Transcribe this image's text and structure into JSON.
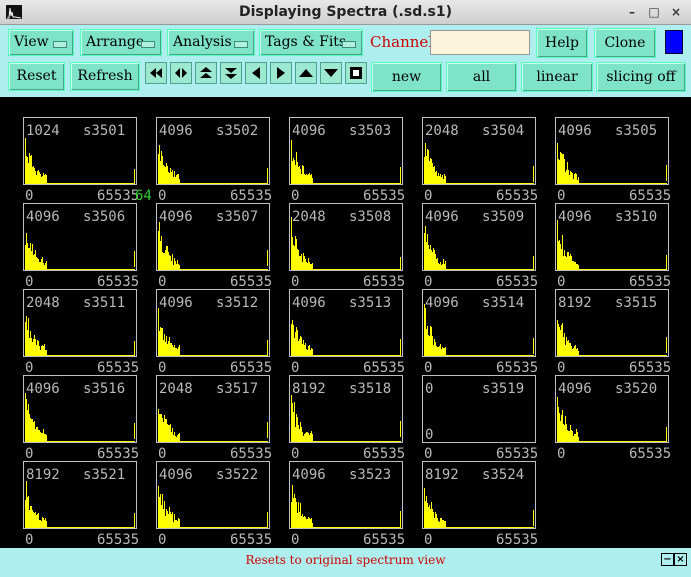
{
  "window": {
    "title": "Displaying Spectra (.sd.s1)"
  },
  "menus": [
    {
      "label": "View"
    },
    {
      "label": "Arrange"
    },
    {
      "label": "Analysis"
    },
    {
      "label": "Tags & Fits"
    }
  ],
  "channel": {
    "label": "Channel:",
    "value": ""
  },
  "buttons": {
    "help": "Help",
    "clone": "Clone",
    "reset": "Reset",
    "refresh": "Refresh",
    "new": "new",
    "all": "all",
    "linear": "linear",
    "slicing": "slicing off"
  },
  "nav_icons": [
    "first-icon",
    "prev-page-icon",
    "scroll-up-fast-icon",
    "scroll-down-fast-icon",
    "left-icon",
    "right-icon",
    "up-icon",
    "down-icon",
    "stop-icon"
  ],
  "colors": {
    "panel": "#aeeeee",
    "button": "#7fe3c8",
    "histogram": "#ffff00",
    "label": "#b9b9b9",
    "status": "#d00000"
  },
  "overlay_label": "64",
  "spectra": [
    {
      "max": "1024",
      "id": "s3501",
      "xmin": "0",
      "xmax": "65535"
    },
    {
      "max": "4096",
      "id": "s3502",
      "xmin": "0",
      "xmax": "65535"
    },
    {
      "max": "4096",
      "id": "s3503",
      "xmin": "0",
      "xmax": "65535"
    },
    {
      "max": "2048",
      "id": "s3504",
      "xmin": "0",
      "xmax": "65535"
    },
    {
      "max": "4096",
      "id": "s3505",
      "xmin": "0",
      "xmax": "65535"
    },
    {
      "max": "4096",
      "id": "s3506",
      "xmin": "0",
      "xmax": "65535"
    },
    {
      "max": "4096",
      "id": "s3507",
      "xmin": "0",
      "xmax": "65535"
    },
    {
      "max": "2048",
      "id": "s3508",
      "xmin": "0",
      "xmax": "65535"
    },
    {
      "max": "4096",
      "id": "s3509",
      "xmin": "0",
      "xmax": "65535"
    },
    {
      "max": "4096",
      "id": "s3510",
      "xmin": "0",
      "xmax": "65535"
    },
    {
      "max": "2048",
      "id": "s3511",
      "xmin": "0",
      "xmax": "65535"
    },
    {
      "max": "4096",
      "id": "s3512",
      "xmin": "0",
      "xmax": "65535"
    },
    {
      "max": "4096",
      "id": "s3513",
      "xmin": "0",
      "xmax": "65535"
    },
    {
      "max": "4096",
      "id": "s3514",
      "xmin": "0",
      "xmax": "65535"
    },
    {
      "max": "8192",
      "id": "s3515",
      "xmin": "0",
      "xmax": "65535"
    },
    {
      "max": "4096",
      "id": "s3516",
      "xmin": "0",
      "xmax": "65535"
    },
    {
      "max": "2048",
      "id": "s3517",
      "xmin": "0",
      "xmax": "65535"
    },
    {
      "max": "8192",
      "id": "s3518",
      "xmin": "0",
      "xmax": "65535"
    },
    {
      "max": "0",
      "id": "s3519",
      "xmin": "0",
      "xmax": "65535",
      "empty": true
    },
    {
      "max": "4096",
      "id": "s3520",
      "xmin": "0",
      "xmax": "65535"
    },
    {
      "max": "8192",
      "id": "s3521",
      "xmin": "0",
      "xmax": "65535"
    },
    {
      "max": "4096",
      "id": "s3522",
      "xmin": "0",
      "xmax": "65535"
    },
    {
      "max": "4096",
      "id": "s3523",
      "xmin": "0",
      "xmax": "65535"
    },
    {
      "max": "8192",
      "id": "s3524",
      "xmin": "0",
      "xmax": "65535"
    }
  ],
  "status": {
    "text": "Resets to original spectrum view"
  }
}
